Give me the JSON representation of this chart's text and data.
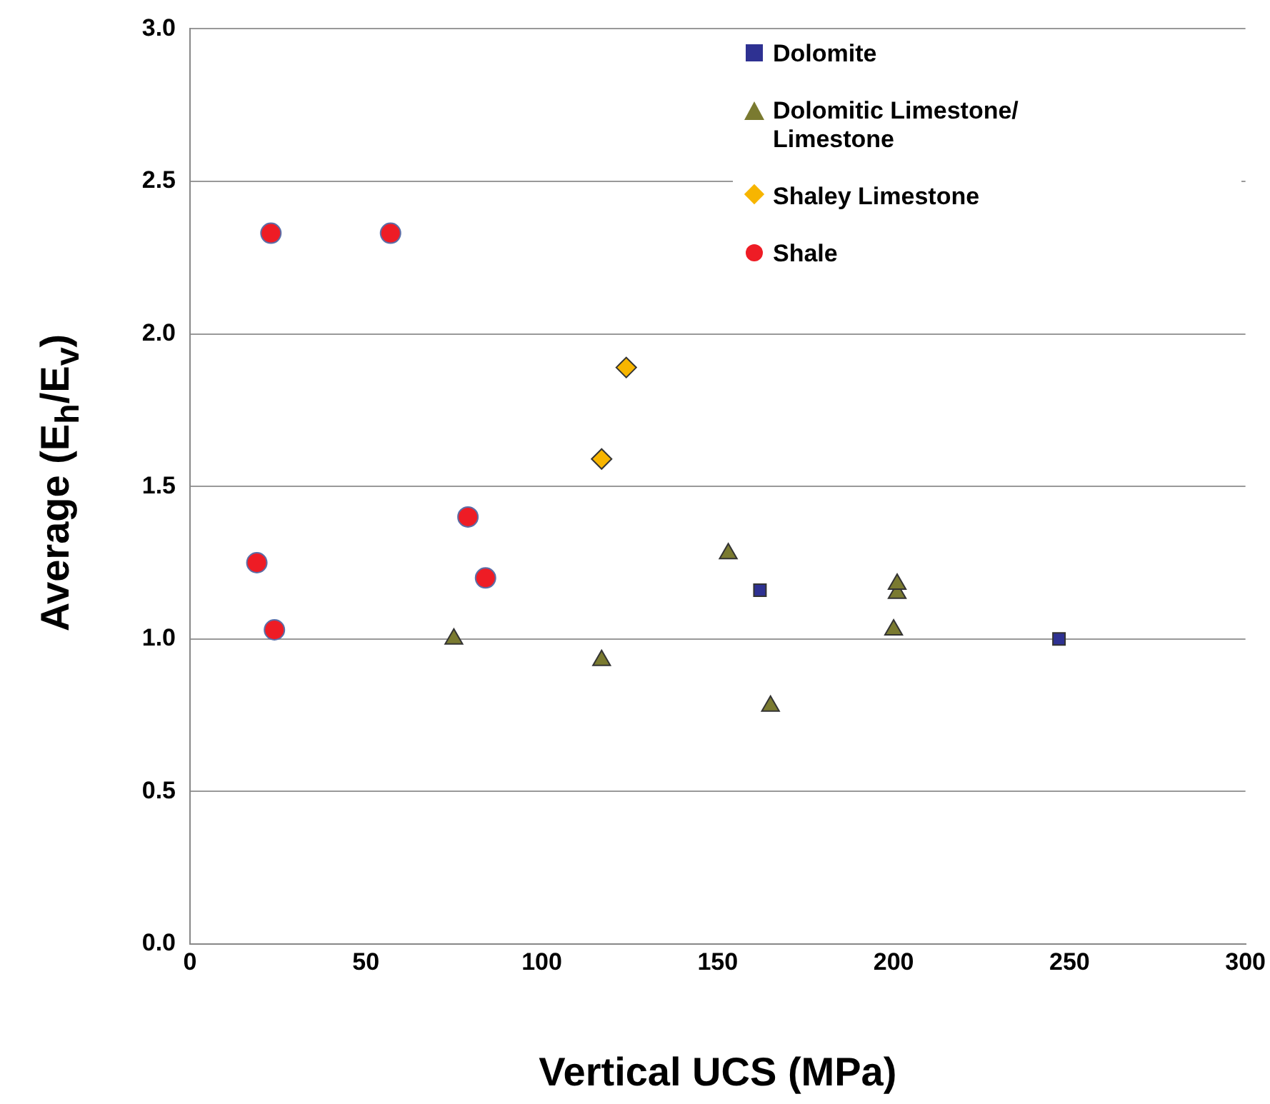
{
  "chart_data": {
    "type": "scatter",
    "xlabel": "Vertical UCS (MPa)",
    "ylabel": "Average (E$_{h}$/E$_{v}$)",
    "xlim": [
      0,
      300
    ],
    "xticks": [
      0,
      50,
      100,
      150,
      200,
      250,
      300
    ],
    "ylim": [
      0,
      3
    ],
    "yticks": [
      {
        "value": 0,
        "label": "0.0"
      },
      {
        "value": 0.5,
        "label": "0.5"
      },
      {
        "value": 1,
        "label": "1.0"
      },
      {
        "value": 1.5,
        "label": "1.5"
      },
      {
        "value": 2,
        "label": "2.0"
      },
      {
        "value": 2.5,
        "label": "2.5"
      },
      {
        "value": 3,
        "label": "3.0"
      }
    ],
    "grid": "y",
    "legend": "top right",
    "series": [
      {
        "name": "Dolomite",
        "color": "#2e3192",
        "marker": "square",
        "x": [
          162,
          247
        ],
        "values": [
          1.16,
          1.0
        ]
      },
      {
        "name": "Dolomitic Limestone/ Limestone",
        "color": "#7a7a30",
        "marker": "triangle",
        "x": [
          75,
          117,
          153,
          165,
          200,
          201,
          201
        ],
        "values": [
          1.0,
          0.93,
          1.28,
          0.78,
          1.03,
          1.15,
          1.18
        ]
      },
      {
        "name": "Shaley Limestone",
        "color": "#f7b500",
        "marker": "diamond",
        "x": [
          117,
          124
        ],
        "values": [
          1.59,
          1.89
        ]
      },
      {
        "name": "Shale",
        "color": "#ee1c25",
        "marker": "circle",
        "x": [
          19,
          24,
          23,
          57,
          79,
          84
        ],
        "values": [
          1.25,
          1.03,
          2.33,
          2.33,
          1.4,
          1.2
        ]
      }
    ]
  }
}
